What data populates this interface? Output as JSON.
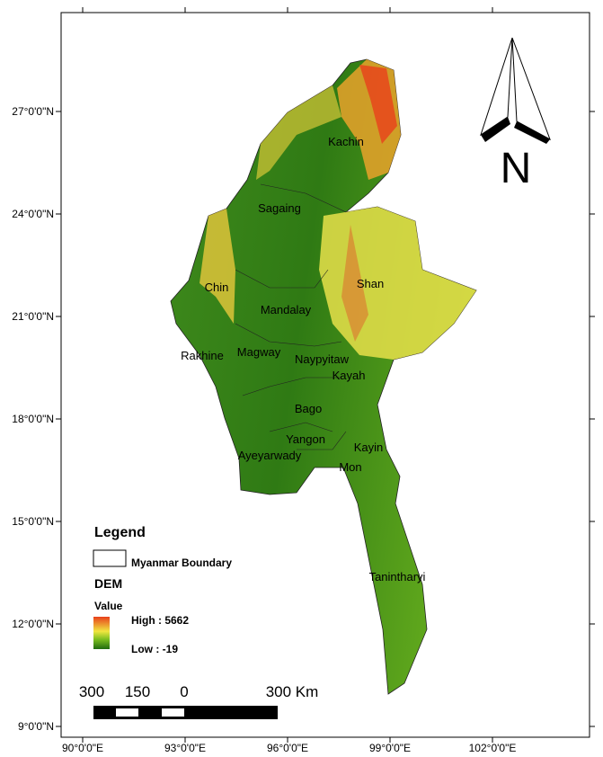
{
  "map": {
    "lat_ticks": [
      {
        "value": 27,
        "label": "27°0'0\"N"
      },
      {
        "value": 24,
        "label": "24°0'0\"N"
      },
      {
        "value": 21,
        "label": "21°0'0\"N"
      },
      {
        "value": 18,
        "label": "18°0'0\"N"
      },
      {
        "value": 15,
        "label": "15°0'0\"N"
      },
      {
        "value": 12,
        "label": "12°0'0\"N"
      },
      {
        "value": 9,
        "label": "9°0'0\"N"
      }
    ],
    "lon_ticks": [
      {
        "value": 90,
        "label": "90°0'0\"E"
      },
      {
        "value": 93,
        "label": "93°0'0\"E"
      },
      {
        "value": 96,
        "label": "96°0'0\"E"
      },
      {
        "value": 99,
        "label": "99°0'0\"E"
      },
      {
        "value": 102,
        "label": "102°0'0\"E"
      }
    ],
    "regions": [
      "Kachin",
      "Sagaing",
      "Shan",
      "Chin",
      "Mandalay",
      "Magway",
      "Naypyitaw",
      "Rakhine",
      "Kayah",
      "Bago",
      "Yangon",
      "Kayin",
      "Ayeyarwady",
      "Mon",
      "Tanintharyi"
    ],
    "north": "N",
    "legend": {
      "title": "Legend",
      "boundary": "Myanmar Boundary",
      "dem": "DEM",
      "value": "Value",
      "high": "High : 5662",
      "low": "Low : -19"
    },
    "scale": [
      "300",
      "150",
      "0",
      "300 Km"
    ]
  }
}
